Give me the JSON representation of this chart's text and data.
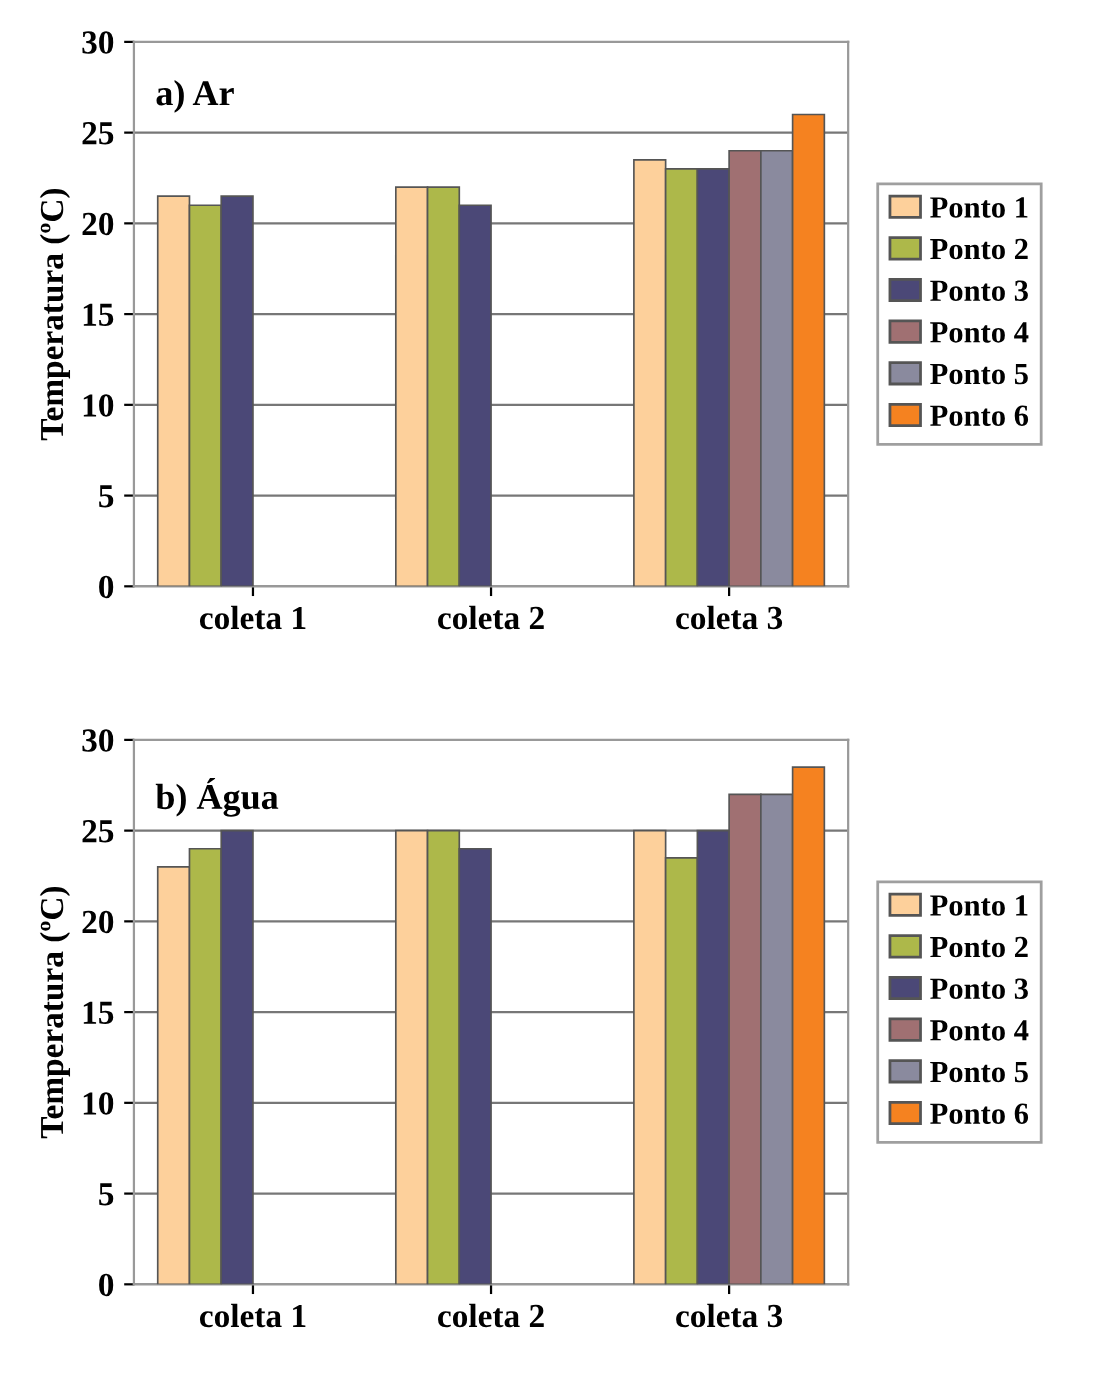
{
  "chart_data": [
    {
      "type": "bar",
      "title": "a) Ar",
      "ylabel": "Temperatura (ºC)",
      "categories": [
        "coleta 1",
        "coleta 2",
        "coleta 3"
      ],
      "ylim": [
        0,
        30
      ],
      "yticks": [
        0,
        5,
        10,
        15,
        20,
        25,
        30
      ],
      "grid": "y",
      "legend": "right",
      "series": [
        {
          "name": "Ponto 1",
          "color": "#fdd09b",
          "values": [
            21.5,
            22,
            23.5
          ]
        },
        {
          "name": "Ponto 2",
          "color": "#adb84a",
          "values": [
            21,
            22,
            23
          ]
        },
        {
          "name": "Ponto 3",
          "color": "#4b4877",
          "values": [
            21.5,
            21,
            23
          ]
        },
        {
          "name": "Ponto 4",
          "color": "#a07072",
          "values": [
            null,
            null,
            24
          ]
        },
        {
          "name": "Ponto 5",
          "color": "#8a8a9e",
          "values": [
            null,
            null,
            24
          ]
        },
        {
          "name": "Ponto 6",
          "color": "#f58220",
          "values": [
            null,
            null,
            26
          ]
        }
      ]
    },
    {
      "type": "bar",
      "title": "b) Água",
      "ylabel": "Temperatura (ºC)",
      "categories": [
        "coleta 1",
        "coleta 2",
        "coleta 3"
      ],
      "ylim": [
        0,
        30
      ],
      "yticks": [
        0,
        5,
        10,
        15,
        20,
        25,
        30
      ],
      "grid": "y",
      "legend": "right",
      "series": [
        {
          "name": "Ponto 1",
          "color": "#fdd09b",
          "values": [
            23,
            25,
            25
          ]
        },
        {
          "name": "Ponto 2",
          "color": "#adb84a",
          "values": [
            24,
            25,
            23.5
          ]
        },
        {
          "name": "Ponto 3",
          "color": "#4b4877",
          "values": [
            25,
            24,
            25
          ]
        },
        {
          "name": "Ponto 4",
          "color": "#a07072",
          "values": [
            null,
            null,
            27
          ]
        },
        {
          "name": "Ponto 5",
          "color": "#8a8a9e",
          "values": [
            null,
            null,
            27
          ]
        },
        {
          "name": "Ponto 6",
          "color": "#f58220",
          "values": [
            null,
            null,
            28.5
          ]
        }
      ]
    }
  ]
}
